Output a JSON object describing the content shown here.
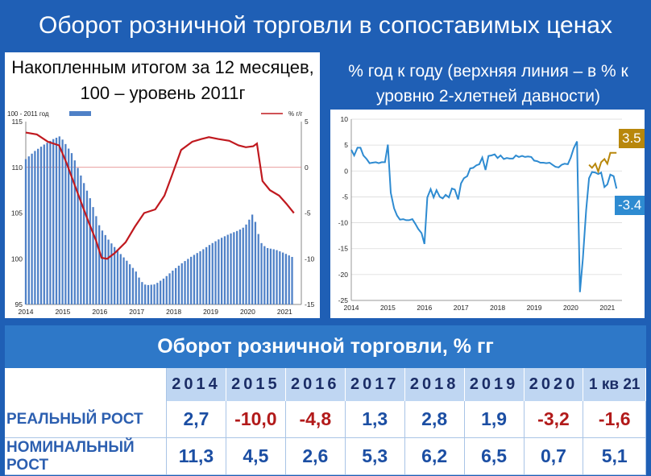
{
  "title": "Оборот розничной торговли в сопоставимых ценах",
  "left_subtitle": "Накопленным итогом за 12 месяцев, 100 – уровень 2011г",
  "right_subtitle": "% год к году (верхняя линия – в % к уровню 2-хлетней давности)",
  "colors": {
    "background": "#1f5fb5",
    "bar": "#4f81c7",
    "red_line": "#c0191f",
    "blue_line": "#2e8bd1",
    "gold_line": "#b8870b",
    "header_band": "#2e78c8"
  },
  "chart_data": [
    {
      "type": "bar",
      "legend": [
        {
          "label": "100 - 2011 год",
          "color": "#4f81c7",
          "type": "bar"
        },
        {
          "label": "%  г/г",
          "color": "#c0191f",
          "type": "line"
        }
      ],
      "legend_position": "top",
      "x_ticks": [
        "2014",
        "2015",
        "2016",
        "2017",
        "2018",
        "2019",
        "2020",
        "2021"
      ],
      "y_left_ticks": [
        "95",
        "100",
        "105",
        "110",
        "115"
      ],
      "y_left_range": [
        95,
        115
      ],
      "y_right_ticks": [
        "-15",
        "-10",
        "-5",
        "0",
        "5"
      ],
      "y_right_range": [
        -15,
        5
      ],
      "bar_index": {
        "points": [
          [
            2014.0,
            110.9
          ],
          [
            2014.25,
            111.8
          ],
          [
            2014.5,
            112.5
          ],
          [
            2014.75,
            113.1
          ],
          [
            2014.92,
            113.4
          ],
          [
            2015.0,
            113.0
          ],
          [
            2015.25,
            111.5
          ],
          [
            2015.5,
            109.0
          ],
          [
            2015.75,
            106.5
          ],
          [
            2016.0,
            103.5
          ],
          [
            2016.25,
            102.0
          ],
          [
            2016.5,
            100.8
          ],
          [
            2016.75,
            99.7
          ],
          [
            2017.0,
            98.5
          ],
          [
            2017.1,
            97.6
          ],
          [
            2017.25,
            97.1
          ],
          [
            2017.5,
            97.2
          ],
          [
            2017.75,
            97.9
          ],
          [
            2018.0,
            98.8
          ],
          [
            2018.25,
            99.6
          ],
          [
            2018.5,
            100.3
          ],
          [
            2018.75,
            100.9
          ],
          [
            2019.0,
            101.6
          ],
          [
            2019.25,
            102.2
          ],
          [
            2019.5,
            102.7
          ],
          [
            2019.75,
            103.1
          ],
          [
            2019.92,
            103.5
          ],
          [
            2020.0,
            104.0
          ],
          [
            2020.15,
            105.0
          ],
          [
            2020.25,
            103.3
          ],
          [
            2020.35,
            101.8
          ],
          [
            2020.5,
            101.2
          ],
          [
            2020.75,
            101.0
          ],
          [
            2021.0,
            100.6
          ],
          [
            2021.2,
            100.2
          ]
        ]
      },
      "series": [
        {
          "name": "%  г/г",
          "axis": "right",
          "points": [
            [
              2014.0,
              3.8
            ],
            [
              2014.3,
              3.6
            ],
            [
              2014.6,
              2.8
            ],
            [
              2014.9,
              2.4
            ],
            [
              2015.1,
              0.5
            ],
            [
              2015.4,
              -2.8
            ],
            [
              2015.7,
              -6.0
            ],
            [
              2015.9,
              -8.0
            ],
            [
              2016.05,
              -9.9
            ],
            [
              2016.2,
              -10.0
            ],
            [
              2016.4,
              -9.4
            ],
            [
              2016.7,
              -8.2
            ],
            [
              2016.95,
              -6.5
            ],
            [
              2017.2,
              -5.0
            ],
            [
              2017.5,
              -4.6
            ],
            [
              2017.75,
              -3.1
            ],
            [
              2017.95,
              -0.9
            ],
            [
              2018.2,
              1.9
            ],
            [
              2018.5,
              2.8
            ],
            [
              2018.75,
              3.1
            ],
            [
              2018.95,
              3.3
            ],
            [
              2019.2,
              3.1
            ],
            [
              2019.5,
              2.9
            ],
            [
              2019.75,
              2.4
            ],
            [
              2019.95,
              2.2
            ],
            [
              2020.15,
              2.3
            ],
            [
              2020.25,
              2.6
            ],
            [
              2020.4,
              -1.5
            ],
            [
              2020.6,
              -2.5
            ],
            [
              2020.85,
              -3.1
            ],
            [
              2021.05,
              -4.0
            ],
            [
              2021.25,
              -5.0
            ]
          ]
        }
      ]
    },
    {
      "type": "line",
      "x_ticks": [
        "2014",
        "2015",
        "2016",
        "2017",
        "2018",
        "2019",
        "2020",
        "2021"
      ],
      "y_ticks": [
        "-25",
        "-20",
        "-15",
        "-10",
        "-5",
        "0",
        "5",
        "10"
      ],
      "y_range": [
        -25,
        10
      ],
      "grid": true,
      "series": [
        {
          "color": "#2e8bd1",
          "points": [
            [
              2014.0,
              4.1
            ],
            [
              2014.08,
              3.0
            ],
            [
              2014.17,
              4.5
            ],
            [
              2014.25,
              4.5
            ],
            [
              2014.33,
              3.0
            ],
            [
              2014.42,
              2.3
            ],
            [
              2014.5,
              1.5
            ],
            [
              2014.58,
              1.6
            ],
            [
              2014.67,
              1.7
            ],
            [
              2014.75,
              1.5
            ],
            [
              2014.83,
              1.7
            ],
            [
              2014.92,
              1.7
            ],
            [
              2015.0,
              5.1
            ],
            [
              2015.08,
              -4.2
            ],
            [
              2015.17,
              -7.2
            ],
            [
              2015.25,
              -8.6
            ],
            [
              2015.33,
              -9.4
            ],
            [
              2015.42,
              -9.3
            ],
            [
              2015.5,
              -9.5
            ],
            [
              2015.58,
              -9.5
            ],
            [
              2015.67,
              -9.3
            ],
            [
              2015.75,
              -10.2
            ],
            [
              2015.83,
              -11.2
            ],
            [
              2015.92,
              -12.0
            ],
            [
              2016.0,
              -14.1
            ],
            [
              2016.08,
              -5.1
            ],
            [
              2016.17,
              -3.5
            ],
            [
              2016.25,
              -5.1
            ],
            [
              2016.33,
              -3.7
            ],
            [
              2016.42,
              -5.0
            ],
            [
              2016.5,
              -5.3
            ],
            [
              2016.58,
              -4.6
            ],
            [
              2016.67,
              -5.1
            ],
            [
              2016.75,
              -3.4
            ],
            [
              2016.83,
              -3.6
            ],
            [
              2016.92,
              -5.5
            ],
            [
              2017.0,
              -2.4
            ],
            [
              2017.08,
              -1.4
            ],
            [
              2017.17,
              -1.0
            ],
            [
              2017.25,
              0.5
            ],
            [
              2017.33,
              0.6
            ],
            [
              2017.42,
              1.1
            ],
            [
              2017.5,
              1.3
            ],
            [
              2017.58,
              2.6
            ],
            [
              2017.67,
              0.2
            ],
            [
              2017.75,
              2.9
            ],
            [
              2017.83,
              3.0
            ],
            [
              2017.92,
              3.2
            ],
            [
              2018.0,
              2.5
            ],
            [
              2018.08,
              3.0
            ],
            [
              2018.17,
              2.3
            ],
            [
              2018.25,
              2.5
            ],
            [
              2018.33,
              2.4
            ],
            [
              2018.42,
              2.4
            ],
            [
              2018.5,
              3.0
            ],
            [
              2018.58,
              2.7
            ],
            [
              2018.67,
              2.9
            ],
            [
              2018.75,
              2.7
            ],
            [
              2018.83,
              2.8
            ],
            [
              2018.92,
              2.7
            ],
            [
              2019.0,
              2.0
            ],
            [
              2019.08,
              1.9
            ],
            [
              2019.17,
              1.6
            ],
            [
              2019.25,
              1.6
            ],
            [
              2019.33,
              1.5
            ],
            [
              2019.42,
              1.6
            ],
            [
              2019.5,
              1.2
            ],
            [
              2019.58,
              0.8
            ],
            [
              2019.67,
              0.7
            ],
            [
              2019.75,
              1.2
            ],
            [
              2019.83,
              1.4
            ],
            [
              2019.92,
              1.3
            ],
            [
              2020.0,
              2.6
            ],
            [
              2020.08,
              4.4
            ],
            [
              2020.17,
              5.7
            ],
            [
              2020.25,
              -23.4
            ],
            [
              2020.33,
              -17.0
            ],
            [
              2020.42,
              -7.6
            ],
            [
              2020.5,
              -1.4
            ],
            [
              2020.58,
              -0.2
            ],
            [
              2020.67,
              -0.3
            ],
            [
              2020.75,
              -0.6
            ],
            [
              2020.83,
              -0.3
            ],
            [
              2020.92,
              -3.1
            ],
            [
              2021.0,
              -2.6
            ],
            [
              2021.08,
              -0.7
            ],
            [
              2021.17,
              -1.0
            ],
            [
              2021.25,
              -3.4
            ]
          ]
        },
        {
          "color": "#b8870b",
          "points": [
            [
              2020.5,
              1.2
            ],
            [
              2020.58,
              0.6
            ],
            [
              2020.67,
              1.4
            ],
            [
              2020.75,
              -0.1
            ],
            [
              2020.83,
              1.7
            ],
            [
              2020.92,
              2.3
            ],
            [
              2021.0,
              1.4
            ],
            [
              2021.08,
              3.5
            ],
            [
              2021.25,
              3.5
            ]
          ]
        }
      ],
      "annotations": [
        {
          "text": "3.5",
          "color": "#b8870b"
        },
        {
          "text": "-3.4",
          "color": "#2e8bd1"
        }
      ]
    }
  ],
  "table": {
    "title": "Оборот розничной торговли, % гг",
    "headers": [
      "2014",
      "2015",
      "2016",
      "2017",
      "2018",
      "2019",
      "2020",
      "1 кв 21"
    ],
    "rows": [
      {
        "label": "РЕАЛЬНЫЙ РОСТ",
        "values": [
          "2,7",
          "-10,0",
          "-4,8",
          "1,3",
          "2,8",
          "1,9",
          "-3,2",
          "-1,6"
        ]
      },
      {
        "label": "НОМИНАЛЬНЫЙ РОСТ",
        "values": [
          "11,3",
          "4,5",
          "2,6",
          "5,3",
          "6,2",
          "6,5",
          "0,7",
          "5,1"
        ]
      }
    ]
  }
}
